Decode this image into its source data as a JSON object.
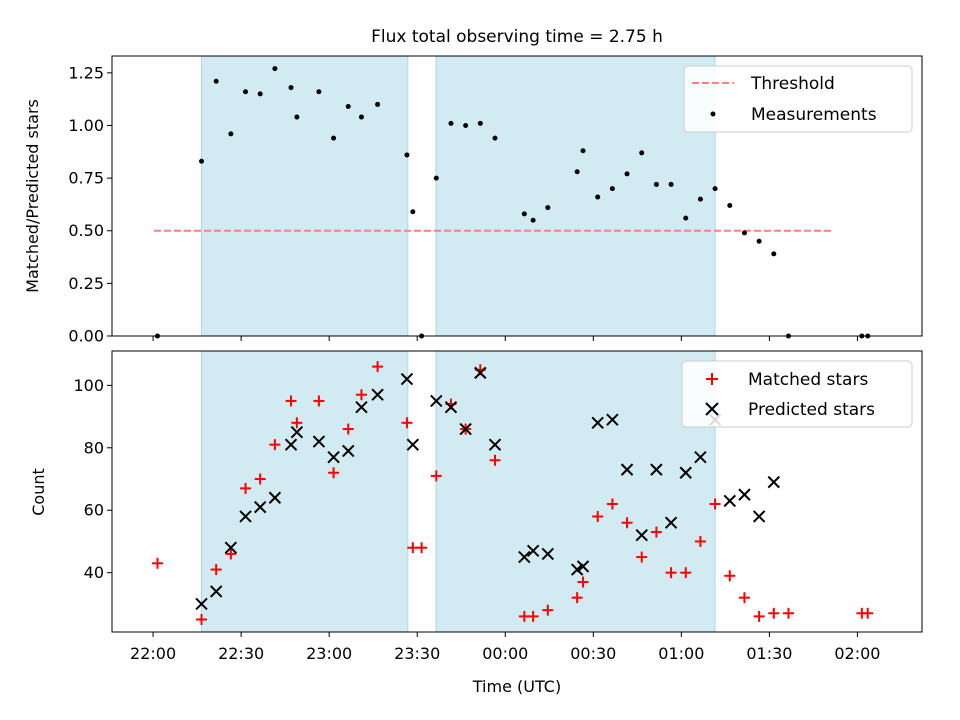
{
  "chart_data": {
    "type": "scatter",
    "title": "Flux total observing time = 2.75 h",
    "xlabel": "Time (UTC)",
    "x_unit": "minutes",
    "xlim": [
      1306,
      1582
    ],
    "x_ticks": [
      {
        "value": 1320,
        "label": "22:00"
      },
      {
        "value": 1350,
        "label": "22:30"
      },
      {
        "value": 1380,
        "label": "23:00"
      },
      {
        "value": 1410,
        "label": "23:30"
      },
      {
        "value": 1440,
        "label": "00:00"
      },
      {
        "value": 1470,
        "label": "00:30"
      },
      {
        "value": 1500,
        "label": "01:00"
      },
      {
        "value": 1530,
        "label": "01:30"
      },
      {
        "value": 1560,
        "label": "02:00"
      }
    ],
    "shaded_regions": [
      {
        "x0": 1336.5,
        "x1": 1406.8,
        "color": "#add8e6"
      },
      {
        "x0": 1416.4,
        "x1": 1511.5,
        "color": "#add8e6"
      }
    ],
    "top_panel": {
      "ylabel": "Matched/Predicted stars",
      "ylim": [
        0,
        1.33
      ],
      "y_ticks": [
        0.0,
        0.25,
        0.5,
        0.75,
        1.0,
        1.25
      ],
      "y_tick_labels": [
        "0.00",
        "0.25",
        "0.50",
        "0.75",
        "1.00",
        "1.25"
      ],
      "legend": {
        "position": "upper right",
        "threshold_label": "Threshold",
        "measurements_label": "Measurements"
      },
      "threshold": {
        "value": 0.5,
        "x0": 1320.3,
        "x1": 1551.7,
        "color": "#ff7f7f"
      },
      "measurements": [
        [
          1321.5,
          0.0
        ],
        [
          1336.5,
          0.83
        ],
        [
          1341.5,
          1.21
        ],
        [
          1346.5,
          0.96
        ],
        [
          1351.5,
          1.16
        ],
        [
          1356.5,
          1.15
        ],
        [
          1361.5,
          1.27
        ],
        [
          1367.0,
          1.18
        ],
        [
          1369.0,
          1.04
        ],
        [
          1376.5,
          1.16
        ],
        [
          1381.5,
          0.94
        ],
        [
          1386.5,
          1.09
        ],
        [
          1391.0,
          1.04
        ],
        [
          1396.5,
          1.1
        ],
        [
          1406.5,
          0.86
        ],
        [
          1408.5,
          0.59
        ],
        [
          1411.5,
          0.0
        ],
        [
          1416.5,
          0.75
        ],
        [
          1421.5,
          1.01
        ],
        [
          1426.5,
          1.0
        ],
        [
          1431.5,
          1.01
        ],
        [
          1436.5,
          0.94
        ],
        [
          1446.5,
          0.58
        ],
        [
          1449.5,
          0.55
        ],
        [
          1454.5,
          0.61
        ],
        [
          1464.5,
          0.78
        ],
        [
          1466.5,
          0.88
        ],
        [
          1471.5,
          0.66
        ],
        [
          1476.5,
          0.7
        ],
        [
          1481.5,
          0.77
        ],
        [
          1486.5,
          0.87
        ],
        [
          1491.5,
          0.72
        ],
        [
          1496.5,
          0.72
        ],
        [
          1501.5,
          0.56
        ],
        [
          1506.5,
          0.65
        ],
        [
          1511.5,
          0.7
        ],
        [
          1516.5,
          0.62
        ],
        [
          1521.5,
          0.49
        ],
        [
          1526.5,
          0.45
        ],
        [
          1531.5,
          0.39
        ],
        [
          1536.5,
          0.0
        ],
        [
          1561.5,
          0.0
        ],
        [
          1563.5,
          0.0
        ]
      ]
    },
    "bottom_panel": {
      "ylabel": "Count",
      "ylim": [
        21,
        111
      ],
      "y_ticks": [
        40,
        60,
        80,
        100
      ],
      "y_tick_labels": [
        "40",
        "60",
        "80",
        "100"
      ],
      "legend": {
        "position": "upper right",
        "matched_label": "Matched stars",
        "predicted_label": "Predicted stars"
      },
      "matched": [
        [
          1321.5,
          43
        ],
        [
          1336.5,
          25
        ],
        [
          1341.5,
          41
        ],
        [
          1346.5,
          46
        ],
        [
          1351.5,
          67
        ],
        [
          1356.5,
          70
        ],
        [
          1361.5,
          81
        ],
        [
          1367.0,
          95
        ],
        [
          1369.0,
          88
        ],
        [
          1376.5,
          95
        ],
        [
          1381.5,
          72
        ],
        [
          1386.5,
          86
        ],
        [
          1391.0,
          97
        ],
        [
          1396.5,
          106
        ],
        [
          1406.5,
          88
        ],
        [
          1408.5,
          48
        ],
        [
          1411.5,
          48
        ],
        [
          1416.5,
          71
        ],
        [
          1421.5,
          94
        ],
        [
          1426.5,
          86
        ],
        [
          1431.5,
          105
        ],
        [
          1436.5,
          76
        ],
        [
          1446.5,
          26
        ],
        [
          1449.5,
          26
        ],
        [
          1454.5,
          28
        ],
        [
          1464.5,
          32
        ],
        [
          1466.5,
          37
        ],
        [
          1471.5,
          58
        ],
        [
          1476.5,
          62
        ],
        [
          1481.5,
          56
        ],
        [
          1486.5,
          45
        ],
        [
          1491.5,
          53
        ],
        [
          1496.5,
          40
        ],
        [
          1501.5,
          40
        ],
        [
          1506.5,
          50
        ],
        [
          1511.5,
          62
        ],
        [
          1516.5,
          39
        ],
        [
          1521.5,
          32
        ],
        [
          1526.5,
          26
        ],
        [
          1531.5,
          27
        ],
        [
          1536.5,
          27
        ],
        [
          1561.5,
          27
        ],
        [
          1563.5,
          27
        ]
      ],
      "predicted": [
        [
          1336.5,
          30
        ],
        [
          1341.5,
          34
        ],
        [
          1346.5,
          48
        ],
        [
          1351.5,
          58
        ],
        [
          1356.5,
          61
        ],
        [
          1361.5,
          64
        ],
        [
          1367.0,
          81
        ],
        [
          1369.0,
          85
        ],
        [
          1376.5,
          82
        ],
        [
          1381.5,
          77
        ],
        [
          1386.5,
          79
        ],
        [
          1391.0,
          93
        ],
        [
          1396.5,
          97
        ],
        [
          1406.5,
          102
        ],
        [
          1408.5,
          81
        ],
        [
          1416.5,
          95
        ],
        [
          1421.5,
          93
        ],
        [
          1426.5,
          86
        ],
        [
          1431.5,
          104
        ],
        [
          1436.5,
          81
        ],
        [
          1446.5,
          45
        ],
        [
          1449.5,
          47
        ],
        [
          1454.5,
          46
        ],
        [
          1464.5,
          41
        ],
        [
          1466.5,
          42
        ],
        [
          1471.5,
          88
        ],
        [
          1476.5,
          89
        ],
        [
          1481.5,
          73
        ],
        [
          1486.5,
          52
        ],
        [
          1491.5,
          73
        ],
        [
          1496.5,
          56
        ],
        [
          1501.5,
          72
        ],
        [
          1506.5,
          77
        ],
        [
          1511.5,
          89
        ],
        [
          1516.5,
          63
        ],
        [
          1521.5,
          65
        ],
        [
          1526.5,
          58
        ],
        [
          1531.5,
          69
        ]
      ]
    },
    "colors": {
      "measurement": "#000000",
      "matched": "#ff0000",
      "predicted": "#000000",
      "threshold": "#ff7f7f",
      "shade": "#add8e6"
    }
  }
}
